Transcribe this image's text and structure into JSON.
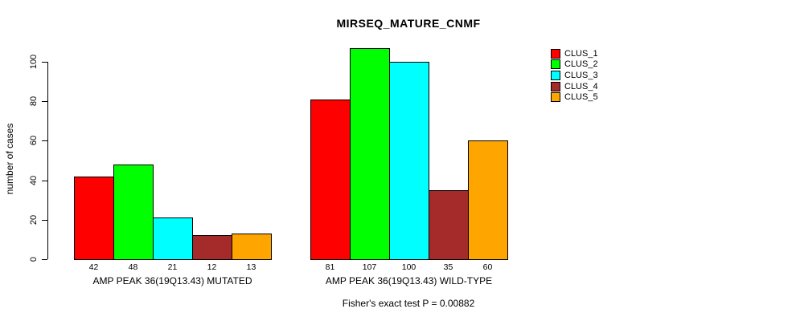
{
  "chart_data": {
    "type": "bar",
    "title": "MIRSEQ_MATURE_CNMF",
    "xlabel": "",
    "ylabel": "number of cases",
    "ylim": [
      0,
      110
    ],
    "yticks": [
      0,
      20,
      40,
      60,
      80,
      100
    ],
    "grid": false,
    "legend_position": "right",
    "bar_value_labels": true,
    "categories": [
      "AMP PEAK 36(19Q13.43) MUTATED",
      "AMP PEAK 36(19Q13.43) WILD-TYPE"
    ],
    "series": [
      {
        "name": "CLUS_1",
        "color": "#FF0000",
        "values": [
          42,
          81
        ]
      },
      {
        "name": "CLUS_2",
        "color": "#00FF00",
        "values": [
          48,
          107
        ]
      },
      {
        "name": "CLUS_3",
        "color": "#00FFFF",
        "values": [
          21,
          100
        ]
      },
      {
        "name": "CLUS_4",
        "color": "#A52A2A",
        "values": [
          12,
          35
        ]
      },
      {
        "name": "CLUS_5",
        "color": "#FFA500",
        "values": [
          13,
          60
        ]
      }
    ],
    "annotation": "Fisher's exact test P = 0.00882"
  }
}
